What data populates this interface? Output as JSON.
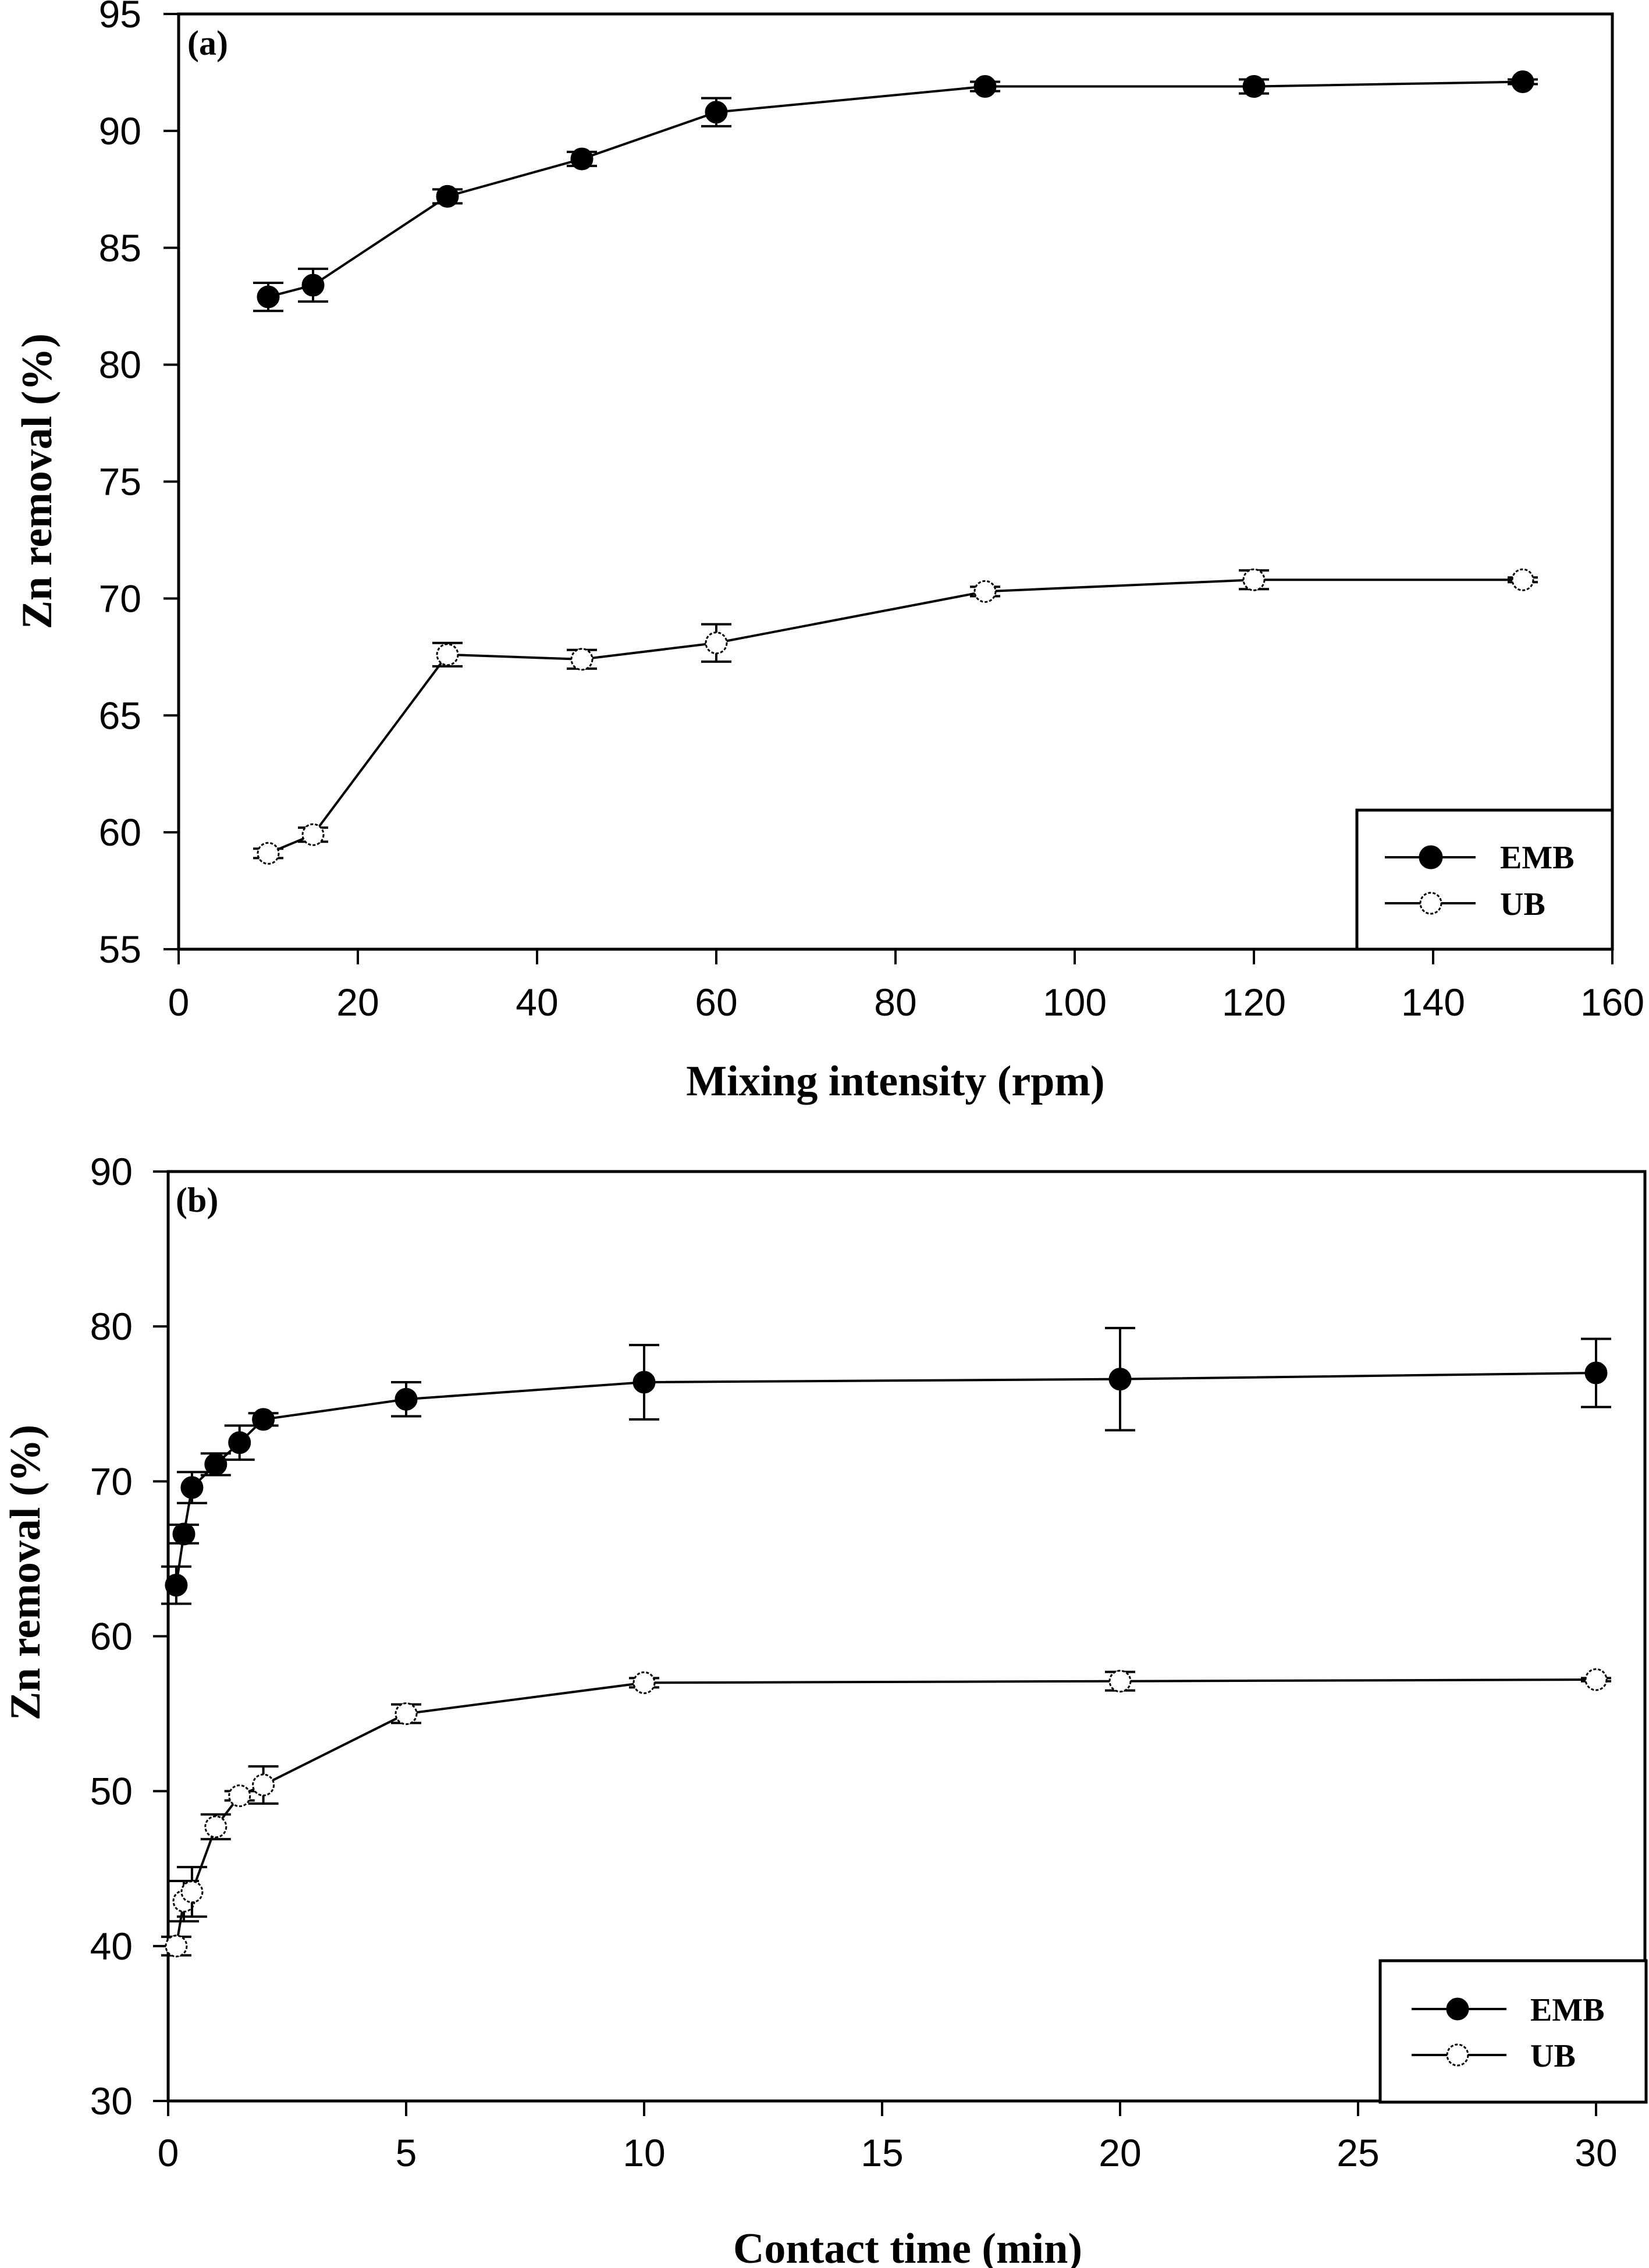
{
  "chart_data": [
    {
      "type": "line",
      "panel_label": "(a)",
      "xlabel": "Mixing intensity (rpm)",
      "ylabel": "Zn removal (%)",
      "xlim": [
        0,
        160
      ],
      "ylim": [
        55,
        95
      ],
      "xticks": [
        0,
        20,
        40,
        60,
        80,
        100,
        120,
        140,
        160
      ],
      "yticks": [
        55,
        60,
        65,
        70,
        75,
        80,
        85,
        90,
        95
      ],
      "grid": false,
      "legend_position": "bottom-right",
      "x": [
        10,
        15,
        30,
        45,
        60,
        90,
        120,
        150
      ],
      "series": [
        {
          "name": "EMB",
          "marker": "filled-circle",
          "color": "#000000",
          "values": [
            82.9,
            83.4,
            87.2,
            88.8,
            90.8,
            91.9,
            91.9,
            92.1
          ],
          "errors": [
            0.6,
            0.7,
            0.3,
            0.3,
            0.6,
            0.2,
            0.3,
            0.1
          ]
        },
        {
          "name": "UB",
          "marker": "open-circle",
          "color": "#000000",
          "values": [
            59.1,
            59.9,
            67.6,
            67.4,
            68.1,
            70.3,
            70.8,
            70.8
          ],
          "errors": [
            0.2,
            0.3,
            0.5,
            0.4,
            0.8,
            0.2,
            0.4,
            0.1
          ]
        }
      ]
    },
    {
      "type": "line",
      "panel_label": "(b)",
      "xlabel": "Contact time (min)",
      "ylabel": "Zn removal (%)",
      "xlim": [
        0,
        30
      ],
      "ylim": [
        30,
        90
      ],
      "xticks": [
        0,
        5,
        10,
        15,
        20,
        25,
        30
      ],
      "yticks": [
        30,
        40,
        50,
        60,
        70,
        80,
        90
      ],
      "grid": false,
      "legend_position": "bottom-right",
      "x": [
        0.17,
        0.33,
        0.5,
        1,
        1.5,
        2,
        5,
        10,
        20,
        30
      ],
      "series": [
        {
          "name": "EMB",
          "marker": "filled-circle",
          "color": "#000000",
          "values": [
            63.3,
            66.6,
            69.6,
            71.1,
            72.5,
            74.0,
            75.3,
            76.4,
            76.6,
            77.0
          ],
          "errors": [
            1.2,
            0.6,
            1.0,
            0.7,
            1.1,
            0.4,
            1.1,
            2.4,
            3.3,
            2.2
          ]
        },
        {
          "name": "UB",
          "marker": "open-circle",
          "color": "#000000",
          "values": [
            40.0,
            42.9,
            43.5,
            47.7,
            49.7,
            50.4,
            55.0,
            57.0,
            57.1,
            57.2
          ],
          "errors": [
            0.6,
            1.3,
            1.6,
            0.8,
            0.3,
            1.2,
            0.6,
            0.3,
            0.6,
            0.1
          ]
        }
      ]
    }
  ]
}
